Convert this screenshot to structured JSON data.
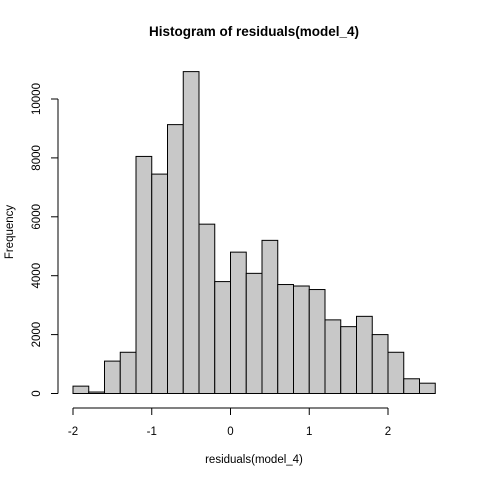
{
  "chart_data": {
    "type": "bar",
    "title": "Histogram of residuals(model_4)",
    "xlabel": "residuals(model_4)",
    "ylabel": "Frequency",
    "bin_width": 0.2,
    "bins": [
      {
        "x0": -2.0,
        "x1": -1.8,
        "count": 250
      },
      {
        "x0": -1.8,
        "x1": -1.6,
        "count": 50
      },
      {
        "x0": -1.6,
        "x1": -1.4,
        "count": 1100
      },
      {
        "x0": -1.4,
        "x1": -1.2,
        "count": 1400
      },
      {
        "x0": -1.2,
        "x1": -1.0,
        "count": 8050
      },
      {
        "x0": -1.0,
        "x1": -0.8,
        "count": 7450
      },
      {
        "x0": -0.8,
        "x1": -0.6,
        "count": 9130
      },
      {
        "x0": -0.6,
        "x1": -0.4,
        "count": 10930
      },
      {
        "x0": -0.4,
        "x1": -0.2,
        "count": 5750
      },
      {
        "x0": -0.2,
        "x1": 0.0,
        "count": 3800
      },
      {
        "x0": 0.0,
        "x1": 0.2,
        "count": 4800
      },
      {
        "x0": 0.2,
        "x1": 0.4,
        "count": 4080
      },
      {
        "x0": 0.4,
        "x1": 0.6,
        "count": 5200
      },
      {
        "x0": 0.6,
        "x1": 0.8,
        "count": 3700
      },
      {
        "x0": 0.8,
        "x1": 1.0,
        "count": 3650
      },
      {
        "x0": 1.0,
        "x1": 1.2,
        "count": 3530
      },
      {
        "x0": 1.2,
        "x1": 1.4,
        "count": 2500
      },
      {
        "x0": 1.4,
        "x1": 1.6,
        "count": 2270
      },
      {
        "x0": 1.6,
        "x1": 1.8,
        "count": 2620
      },
      {
        "x0": 1.8,
        "x1": 2.0,
        "count": 2000
      },
      {
        "x0": 2.0,
        "x1": 2.2,
        "count": 1400
      },
      {
        "x0": 2.2,
        "x1": 2.4,
        "count": 500
      },
      {
        "x0": 2.4,
        "x1": 2.6,
        "count": 350
      }
    ],
    "x_ticks": [
      "-2",
      "-1",
      "0",
      "1",
      "2"
    ],
    "y_ticks": [
      "0",
      "2000",
      "4000",
      "6000",
      "8000",
      "10000"
    ],
    "xlim": [
      -2.0,
      2.6
    ],
    "ylim": [
      0,
      11000
    ],
    "grid": false,
    "bar_color": "#c8c8c8",
    "bar_edge_color": "#000000"
  }
}
